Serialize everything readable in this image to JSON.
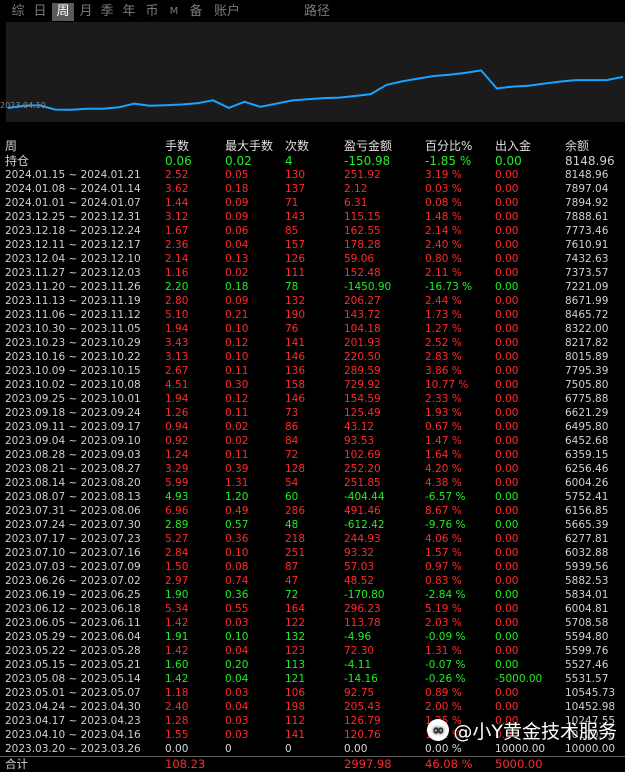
{
  "tabs": [
    {
      "label": "综",
      "active": false
    },
    {
      "label": "日",
      "active": false
    },
    {
      "label": "周",
      "active": true
    },
    {
      "label": "月",
      "active": false
    },
    {
      "label": "季",
      "active": false
    },
    {
      "label": "年",
      "active": false
    },
    {
      "label": "币",
      "active": false
    },
    {
      "label": "M",
      "active": false
    },
    {
      "label": "备",
      "active": false
    },
    {
      "label": "账户",
      "active": false
    },
    {
      "label": "路径",
      "active": false
    }
  ],
  "chart": {
    "start_date": "2023.04.10",
    "line_color": "#1aa3ff",
    "balances": [
      10000.0,
      10452.98,
      10545.73,
      5531.57,
      5527.46,
      5599.76,
      5594.8,
      5708.58,
      6004.81,
      5834.01,
      5882.53,
      5939.56,
      6032.88,
      6277.81,
      5665.39,
      6156.85,
      5752.41,
      6004.26,
      6256.46,
      6359.15,
      6452.68,
      6495.8,
      6621.29,
      6775.88,
      7505.8,
      7795.39,
      8015.89,
      8217.82,
      8322.0,
      8465.72,
      8671.99,
      7221.09,
      7373.57,
      7432.63,
      7610.91,
      7773.46,
      7888.61,
      7894.92,
      7897.04,
      8148.96
    ]
  },
  "table": {
    "headers": [
      "周",
      "手数",
      "最大手数",
      "次数",
      "盈亏金额",
      "百分比%",
      "出入金",
      "余额"
    ],
    "hold": {
      "label": "持仓",
      "lots": "0.06",
      "max_lots": "0.02",
      "count": "4",
      "pnl": "-150.98",
      "pct": "-1.85 %",
      "flow": "0.00",
      "balance": "8148.96",
      "tone": "green"
    },
    "rows": [
      {
        "week": "2024.01.15 ~ 2024.01.21",
        "lots": "2.52",
        "max_lots": "0.05",
        "count": "130",
        "pnl": "251.92",
        "pct": "3.19 %",
        "flow": "0.00",
        "balance": "8148.96",
        "tone": "red"
      },
      {
        "week": "2024.01.08 ~ 2024.01.14",
        "lots": "3.62",
        "max_lots": "0.18",
        "count": "137",
        "pnl": "2.12",
        "pct": "0.03 %",
        "flow": "0.00",
        "balance": "7897.04",
        "tone": "red"
      },
      {
        "week": "2024.01.01 ~ 2024.01.07",
        "lots": "1.44",
        "max_lots": "0.09",
        "count": "71",
        "pnl": "6.31",
        "pct": "0.08 %",
        "flow": "0.00",
        "balance": "7894.92",
        "tone": "red"
      },
      {
        "week": "2023.12.25 ~ 2023.12.31",
        "lots": "3.12",
        "max_lots": "0.09",
        "count": "143",
        "pnl": "115.15",
        "pct": "1.48 %",
        "flow": "0.00",
        "balance": "7888.61",
        "tone": "red"
      },
      {
        "week": "2023.12.18 ~ 2023.12.24",
        "lots": "1.67",
        "max_lots": "0.06",
        "count": "85",
        "pnl": "162.55",
        "pct": "2.14 %",
        "flow": "0.00",
        "balance": "7773.46",
        "tone": "red"
      },
      {
        "week": "2023.12.11 ~ 2023.12.17",
        "lots": "2.36",
        "max_lots": "0.04",
        "count": "157",
        "pnl": "178.28",
        "pct": "2.40 %",
        "flow": "0.00",
        "balance": "7610.91",
        "tone": "red"
      },
      {
        "week": "2023.12.04 ~ 2023.12.10",
        "lots": "2.14",
        "max_lots": "0.13",
        "count": "126",
        "pnl": "59.06",
        "pct": "0.80 %",
        "flow": "0.00",
        "balance": "7432.63",
        "tone": "red"
      },
      {
        "week": "2023.11.27 ~ 2023.12.03",
        "lots": "1.16",
        "max_lots": "0.02",
        "count": "111",
        "pnl": "152.48",
        "pct": "2.11 %",
        "flow": "0.00",
        "balance": "7373.57",
        "tone": "red"
      },
      {
        "week": "2023.11.20 ~ 2023.11.26",
        "lots": "2.20",
        "max_lots": "0.18",
        "count": "78",
        "pnl": "-1450.90",
        "pct": "-16.73 %",
        "flow": "0.00",
        "balance": "7221.09",
        "tone": "green"
      },
      {
        "week": "2023.11.13 ~ 2023.11.19",
        "lots": "2.80",
        "max_lots": "0.09",
        "count": "132",
        "pnl": "206.27",
        "pct": "2.44 %",
        "flow": "0.00",
        "balance": "8671.99",
        "tone": "red"
      },
      {
        "week": "2023.11.06 ~ 2023.11.12",
        "lots": "5.10",
        "max_lots": "0.21",
        "count": "190",
        "pnl": "143.72",
        "pct": "1.73 %",
        "flow": "0.00",
        "balance": "8465.72",
        "tone": "red"
      },
      {
        "week": "2023.10.30 ~ 2023.11.05",
        "lots": "1.94",
        "max_lots": "0.10",
        "count": "76",
        "pnl": "104.18",
        "pct": "1.27 %",
        "flow": "0.00",
        "balance": "8322.00",
        "tone": "red"
      },
      {
        "week": "2023.10.23 ~ 2023.10.29",
        "lots": "3.43",
        "max_lots": "0.12",
        "count": "141",
        "pnl": "201.93",
        "pct": "2.52 %",
        "flow": "0.00",
        "balance": "8217.82",
        "tone": "red"
      },
      {
        "week": "2023.10.16 ~ 2023.10.22",
        "lots": "3.13",
        "max_lots": "0.10",
        "count": "146",
        "pnl": "220.50",
        "pct": "2.83 %",
        "flow": "0.00",
        "balance": "8015.89",
        "tone": "red"
      },
      {
        "week": "2023.10.09 ~ 2023.10.15",
        "lots": "2.67",
        "max_lots": "0.11",
        "count": "136",
        "pnl": "289.59",
        "pct": "3.86 %",
        "flow": "0.00",
        "balance": "7795.39",
        "tone": "red"
      },
      {
        "week": "2023.10.02 ~ 2023.10.08",
        "lots": "4.51",
        "max_lots": "0.30",
        "count": "158",
        "pnl": "729.92",
        "pct": "10.77 %",
        "flow": "0.00",
        "balance": "7505.80",
        "tone": "red"
      },
      {
        "week": "2023.09.25 ~ 2023.10.01",
        "lots": "1.94",
        "max_lots": "0.12",
        "count": "146",
        "pnl": "154.59",
        "pct": "2.33 %",
        "flow": "0.00",
        "balance": "6775.88",
        "tone": "red"
      },
      {
        "week": "2023.09.18 ~ 2023.09.24",
        "lots": "1.26",
        "max_lots": "0.11",
        "count": "73",
        "pnl": "125.49",
        "pct": "1.93 %",
        "flow": "0.00",
        "balance": "6621.29",
        "tone": "red"
      },
      {
        "week": "2023.09.11 ~ 2023.09.17",
        "lots": "0.94",
        "max_lots": "0.02",
        "count": "86",
        "pnl": "43.12",
        "pct": "0.67 %",
        "flow": "0.00",
        "balance": "6495.80",
        "tone": "red"
      },
      {
        "week": "2023.09.04 ~ 2023.09.10",
        "lots": "0.92",
        "max_lots": "0.02",
        "count": "84",
        "pnl": "93.53",
        "pct": "1.47 %",
        "flow": "0.00",
        "balance": "6452.68",
        "tone": "red"
      },
      {
        "week": "2023.08.28 ~ 2023.09.03",
        "lots": "1.24",
        "max_lots": "0.11",
        "count": "72",
        "pnl": "102.69",
        "pct": "1.64 %",
        "flow": "0.00",
        "balance": "6359.15",
        "tone": "red"
      },
      {
        "week": "2023.08.21 ~ 2023.08.27",
        "lots": "3.29",
        "max_lots": "0.39",
        "count": "128",
        "pnl": "252.20",
        "pct": "4.20 %",
        "flow": "0.00",
        "balance": "6256.46",
        "tone": "red"
      },
      {
        "week": "2023.08.14 ~ 2023.08.20",
        "lots": "5.99",
        "max_lots": "1.31",
        "count": "54",
        "pnl": "251.85",
        "pct": "4.38 %",
        "flow": "0.00",
        "balance": "6004.26",
        "tone": "red"
      },
      {
        "week": "2023.08.07 ~ 2023.08.13",
        "lots": "4.93",
        "max_lots": "1.20",
        "count": "60",
        "pnl": "-404.44",
        "pct": "-6.57 %",
        "flow": "0.00",
        "balance": "5752.41",
        "tone": "green"
      },
      {
        "week": "2023.07.31 ~ 2023.08.06",
        "lots": "6.96",
        "max_lots": "0.49",
        "count": "286",
        "pnl": "491.46",
        "pct": "8.67 %",
        "flow": "0.00",
        "balance": "6156.85",
        "tone": "red"
      },
      {
        "week": "2023.07.24 ~ 2023.07.30",
        "lots": "2.89",
        "max_lots": "0.57",
        "count": "48",
        "pnl": "-612.42",
        "pct": "-9.76 %",
        "flow": "0.00",
        "balance": "5665.39",
        "tone": "green"
      },
      {
        "week": "2023.07.17 ~ 2023.07.23",
        "lots": "5.27",
        "max_lots": "0.36",
        "count": "218",
        "pnl": "244.93",
        "pct": "4.06 %",
        "flow": "0.00",
        "balance": "6277.81",
        "tone": "red"
      },
      {
        "week": "2023.07.10 ~ 2023.07.16",
        "lots": "2.84",
        "max_lots": "0.10",
        "count": "251",
        "pnl": "93.32",
        "pct": "1.57 %",
        "flow": "0.00",
        "balance": "6032.88",
        "tone": "red"
      },
      {
        "week": "2023.07.03 ~ 2023.07.09",
        "lots": "1.50",
        "max_lots": "0.08",
        "count": "87",
        "pnl": "57.03",
        "pct": "0.97 %",
        "flow": "0.00",
        "balance": "5939.56",
        "tone": "red"
      },
      {
        "week": "2023.06.26 ~ 2023.07.02",
        "lots": "2.97",
        "max_lots": "0.74",
        "count": "47",
        "pnl": "48.52",
        "pct": "0.83 %",
        "flow": "0.00",
        "balance": "5882.53",
        "tone": "red"
      },
      {
        "week": "2023.06.19 ~ 2023.06.25",
        "lots": "1.90",
        "max_lots": "0.36",
        "count": "72",
        "pnl": "-170.80",
        "pct": "-2.84 %",
        "flow": "0.00",
        "balance": "5834.01",
        "tone": "green"
      },
      {
        "week": "2023.06.12 ~ 2023.06.18",
        "lots": "5.34",
        "max_lots": "0.55",
        "count": "164",
        "pnl": "296.23",
        "pct": "5.19 %",
        "flow": "0.00",
        "balance": "6004.81",
        "tone": "red"
      },
      {
        "week": "2023.06.05 ~ 2023.06.11",
        "lots": "1.42",
        "max_lots": "0.03",
        "count": "122",
        "pnl": "113.78",
        "pct": "2.03 %",
        "flow": "0.00",
        "balance": "5708.58",
        "tone": "red"
      },
      {
        "week": "2023.05.29 ~ 2023.06.04",
        "lots": "1.91",
        "max_lots": "0.10",
        "count": "132",
        "pnl": "-4.96",
        "pct": "-0.09 %",
        "flow": "0.00",
        "balance": "5594.80",
        "tone": "green"
      },
      {
        "week": "2023.05.22 ~ 2023.05.28",
        "lots": "1.42",
        "max_lots": "0.04",
        "count": "123",
        "pnl": "72.30",
        "pct": "1.31 %",
        "flow": "0.00",
        "balance": "5599.76",
        "tone": "red"
      },
      {
        "week": "2023.05.15 ~ 2023.05.21",
        "lots": "1.60",
        "max_lots": "0.20",
        "count": "113",
        "pnl": "-4.11",
        "pct": "-0.07 %",
        "flow": "0.00",
        "balance": "5527.46",
        "tone": "green"
      },
      {
        "week": "2023.05.08 ~ 2023.05.14",
        "lots": "1.42",
        "max_lots": "0.04",
        "count": "121",
        "pnl": "-14.16",
        "pct": "-0.26 %",
        "flow": "-5000.00",
        "balance": "5531.57",
        "tone": "green"
      },
      {
        "week": "2023.05.01 ~ 2023.05.07",
        "lots": "1.18",
        "max_lots": "0.03",
        "count": "106",
        "pnl": "92.75",
        "pct": "0.89 %",
        "flow": "0.00",
        "balance": "10545.73",
        "tone": "red"
      },
      {
        "week": "2023.04.24 ~ 2023.04.30",
        "lots": "2.40",
        "max_lots": "0.04",
        "count": "198",
        "pnl": "205.43",
        "pct": "2.00 %",
        "flow": "0.00",
        "balance": "10452.98",
        "tone": "red"
      },
      {
        "week": "2023.04.17 ~ 2023.04.23",
        "lots": "1.28",
        "max_lots": "0.03",
        "count": "112",
        "pnl": "126.79",
        "pct": "1.25 %",
        "flow": "0.00",
        "balance": "10247.55",
        "tone": "red"
      },
      {
        "week": "2023.04.10 ~ 2023.04.16",
        "lots": "1.55",
        "max_lots": "0.03",
        "count": "141",
        "pnl": "120.76",
        "pct": "1.21 %",
        "flow": "0.00",
        "balance": "10120.76",
        "tone": "red"
      },
      {
        "week": "2023.03.20 ~ 2023.03.26",
        "lots": "0.00",
        "max_lots": "0",
        "count": "0",
        "pnl": "0.00",
        "pct": "0.00 %",
        "flow": "10000.00",
        "balance": "10000.00",
        "tone": "white"
      }
    ],
    "total": {
      "label": "合计",
      "lots": "108.23",
      "pnl": "2997.98",
      "pct": "46.08 %",
      "flow": "5000.00"
    }
  },
  "watermark": {
    "text": "@小Y黄金技术服务",
    "icon": "wechat-channels-icon"
  }
}
